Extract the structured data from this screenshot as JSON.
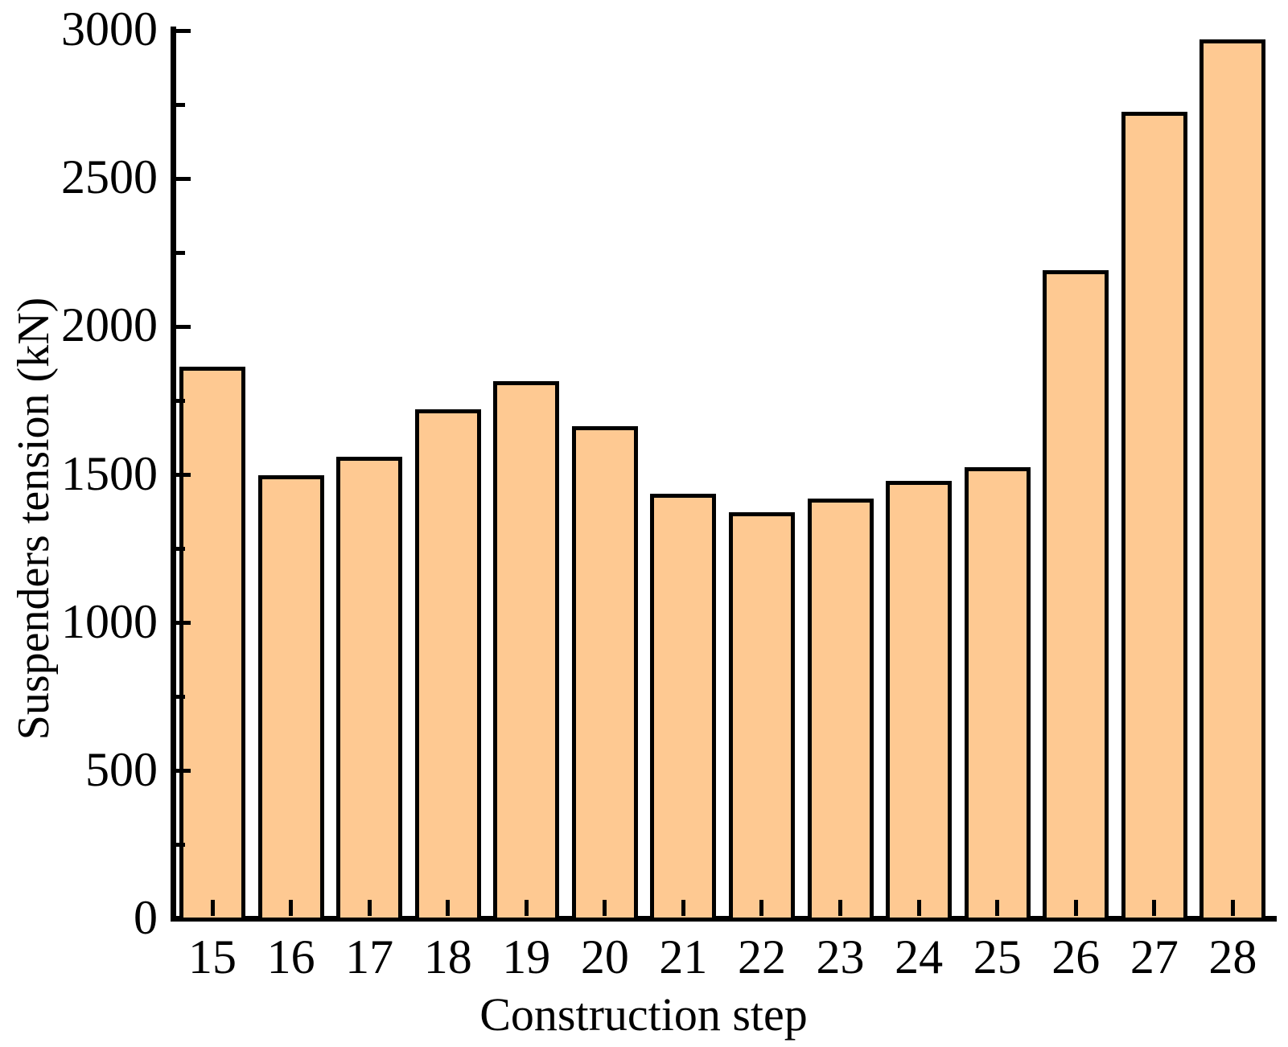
{
  "chart_data": {
    "type": "bar",
    "title": "",
    "xlabel": "Construction step",
    "ylabel": "Suspenders tension (kN)",
    "categories": [
      15,
      16,
      17,
      18,
      19,
      20,
      21,
      22,
      23,
      24,
      25,
      26,
      27,
      28
    ],
    "values": [
      1865,
      1500,
      1560,
      1720,
      1815,
      1665,
      1435,
      1375,
      1420,
      1480,
      1525,
      2190,
      2725,
      2970
    ],
    "ylim": [
      0,
      3000
    ],
    "ytick_major_interval": 500,
    "ytick_minor_interval": 250,
    "ytick_labels": [
      "0",
      "500",
      "1000",
      "1500",
      "2000",
      "2500",
      "3000"
    ],
    "grid": false,
    "legend": "none",
    "tick_direction": "in",
    "colors": {
      "bar_fill": "#fec992",
      "bar_border": "#000000",
      "axis": "#000000",
      "background": "#ffffff",
      "text": "#000000"
    }
  }
}
